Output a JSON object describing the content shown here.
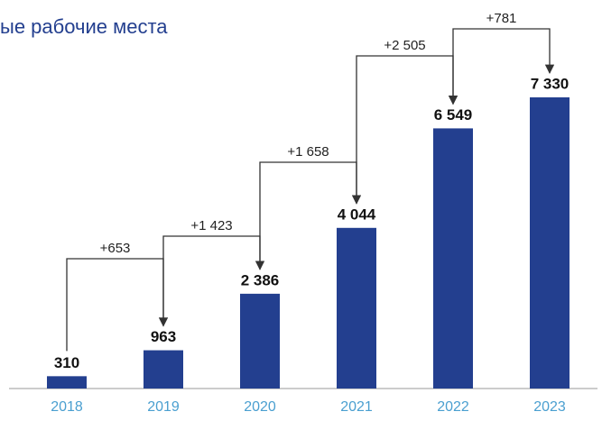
{
  "chart_data": {
    "type": "bar",
    "title": "ые рабочие места",
    "categories": [
      "2018",
      "2019",
      "2020",
      "2021",
      "2022",
      "2023"
    ],
    "values": [
      310,
      963,
      2386,
      4044,
      6549,
      7330
    ],
    "value_labels": [
      "310",
      "963",
      "2 386",
      "4 044",
      "6 549",
      "7 330"
    ],
    "color": "#233f8f",
    "annotations": [
      "+653",
      "+1 423",
      "+1 658",
      "+2 505",
      "+781"
    ]
  }
}
